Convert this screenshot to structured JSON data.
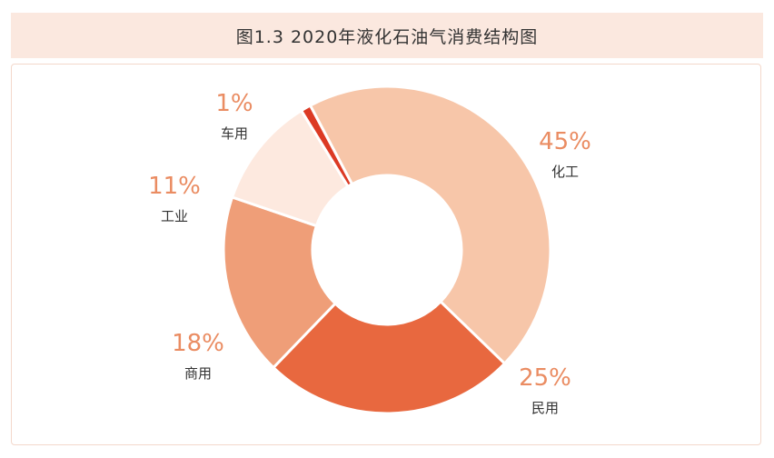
{
  "title": "图1.3 2020年液化石油气消费结构图",
  "chart_data": {
    "type": "pie",
    "variant": "donut",
    "title": "图1.3 2020年液化石油气消费结构图",
    "slices": [
      {
        "label": "化工",
        "value": 45,
        "value_label": "45%",
        "color": "#f7c6a9"
      },
      {
        "label": "民用",
        "value": 25,
        "value_label": "25%",
        "color": "#e8683f"
      },
      {
        "label": "商用",
        "value": 18,
        "value_label": "18%",
        "color": "#ef9e78"
      },
      {
        "label": "工业",
        "value": 11,
        "value_label": "11%",
        "color": "#fde9df"
      },
      {
        "label": "车用",
        "value": 1,
        "value_label": "1%",
        "color": "#dc3a24"
      }
    ],
    "legend": "none"
  }
}
